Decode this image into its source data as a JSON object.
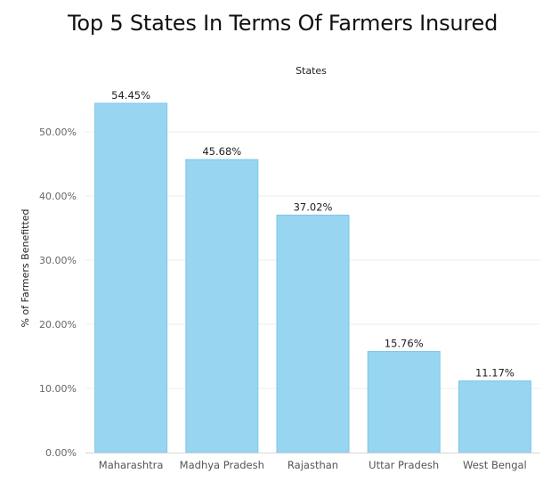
{
  "title": "Top 5 States In Terms Of Farmers Insured",
  "chart_data": {
    "type": "bar",
    "title": "Top 5 States In Terms Of Farmers Insured",
    "xlabel": "States",
    "xlabel_position": "top",
    "ylabel": "% of Farmers Benefitted",
    "categories": [
      "Maharashtra",
      "Madhya Pradesh",
      "Rajasthan",
      "Uttar Pradesh",
      "West Bengal"
    ],
    "values": [
      54.45,
      45.68,
      37.02,
      15.76,
      11.17
    ],
    "data_labels": [
      "54.45%",
      "45.68%",
      "37.02%",
      "15.76%",
      "11.17%"
    ],
    "ylim": [
      0,
      57.5
    ],
    "yticks": [
      0,
      10,
      20,
      30,
      40,
      50
    ],
    "ytick_labels": [
      "0.00%",
      "10.00%",
      "20.00%",
      "30.00%",
      "40.00%",
      "50.00%"
    ],
    "grid": true,
    "bar_color": "#97d5f1",
    "bar_edge_color": "#7fc6e8",
    "grid_color": "#ececec"
  }
}
